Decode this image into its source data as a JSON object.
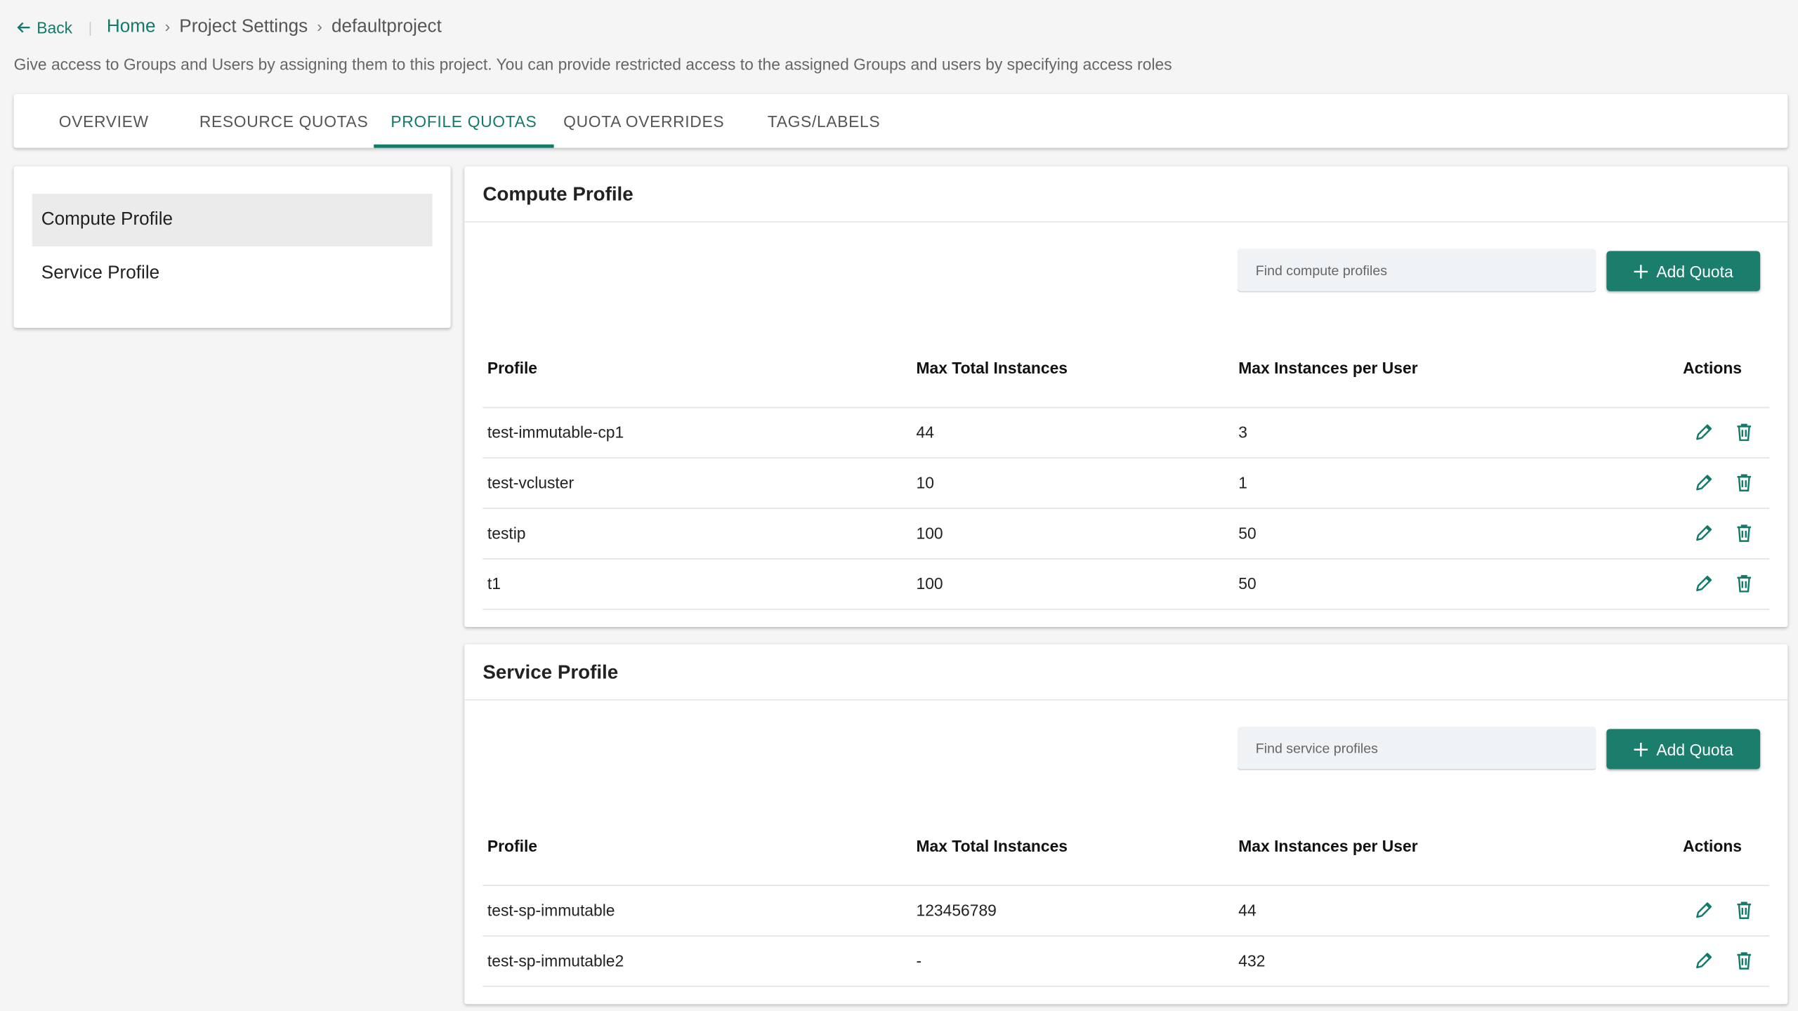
{
  "breadcrumb": {
    "back": "Back",
    "items": [
      "Home",
      "Project Settings",
      "defaultproject"
    ]
  },
  "description": "Give access to Groups and Users by assigning them to this project. You can provide restricted access to the assigned Groups and users by specifying access roles",
  "tabs": {
    "items": [
      "OVERVIEW",
      "RESOURCE QUOTAS",
      "PROFILE QUOTAS",
      "QUOTA OVERRIDES",
      "TAGS/LABELS"
    ],
    "active": 2
  },
  "sidebar": {
    "items": [
      "Compute Profile",
      "Service Profile"
    ],
    "active": 0
  },
  "sections": [
    {
      "title": "Compute Profile",
      "search_placeholder": "Find compute profiles",
      "button": "Add Quota",
      "columns": [
        "Profile",
        "Max Total Instances",
        "Max Instances per User",
        "Actions"
      ],
      "rows": [
        [
          "test-immutable-cp1",
          "44",
          "3"
        ],
        [
          "test-vcluster",
          "10",
          "1"
        ],
        [
          "testip",
          "100",
          "50"
        ],
        [
          "t1",
          "100",
          "50"
        ]
      ]
    },
    {
      "title": "Service Profile",
      "search_placeholder": "Find service profiles",
      "button": "Add Quota",
      "columns": [
        "Profile",
        "Max Total Instances",
        "Max Instances per User",
        "Actions"
      ],
      "rows": [
        [
          "test-sp-immutable",
          "123456789",
          "44"
        ],
        [
          "test-sp-immutable2",
          "-",
          "432"
        ]
      ]
    }
  ]
}
